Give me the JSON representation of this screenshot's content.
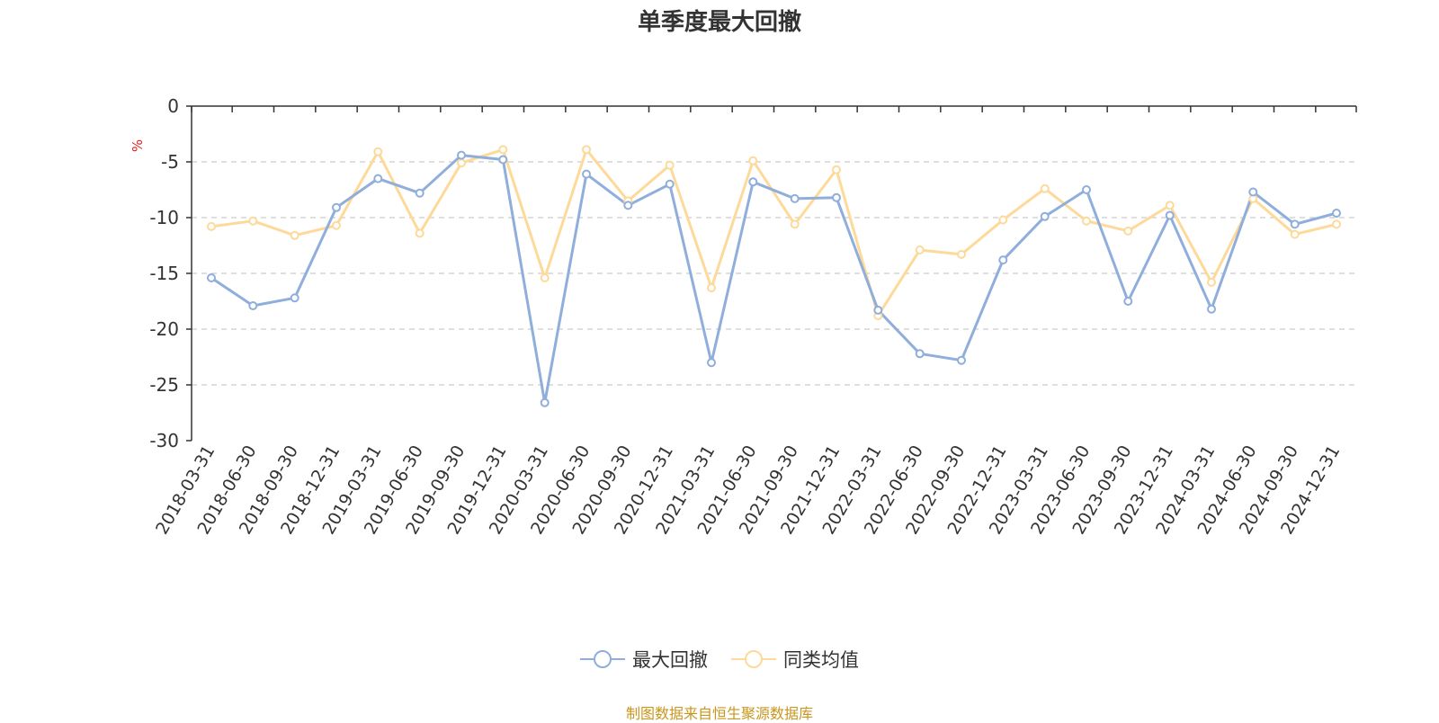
{
  "chart_data": {
    "type": "line",
    "title": "单季度最大回撤",
    "ylabel": "%",
    "ylim": [
      -30,
      0
    ],
    "yticks": [
      0,
      -5,
      -10,
      -15,
      -20,
      -25,
      -30
    ],
    "grid": true,
    "legend_position": "bottom-center",
    "categories": [
      "2018-03-31",
      "2018-06-30",
      "2018-09-30",
      "2018-12-31",
      "2019-03-31",
      "2019-06-30",
      "2019-09-30",
      "2019-12-31",
      "2020-03-31",
      "2020-06-30",
      "2020-09-30",
      "2020-12-31",
      "2021-03-31",
      "2021-06-30",
      "2021-09-30",
      "2021-12-31",
      "2022-03-31",
      "2022-06-30",
      "2022-09-30",
      "2022-12-31",
      "2023-03-31",
      "2023-06-30",
      "2023-09-30",
      "2023-12-31",
      "2024-03-31",
      "2024-06-30",
      "2024-09-30",
      "2024-12-31"
    ],
    "series": [
      {
        "name": "最大回撤",
        "color": "#8faedb",
        "values": [
          -15.4,
          -17.9,
          -17.2,
          -9.1,
          -6.5,
          -7.8,
          -4.4,
          -4.8,
          -26.6,
          -6.1,
          -8.9,
          -7.0,
          -23.0,
          -6.8,
          -8.3,
          -8.2,
          -18.3,
          -22.2,
          -22.8,
          -13.8,
          -9.9,
          -7.5,
          -17.5,
          -9.8,
          -18.2,
          -7.7,
          -10.6,
          -9.6
        ]
      },
      {
        "name": "同类均值",
        "color": "#fdd99a",
        "values": [
          -10.8,
          -10.3,
          -11.6,
          -10.7,
          -4.1,
          -11.4,
          -5.1,
          -3.9,
          -15.4,
          -3.9,
          -8.5,
          -5.3,
          -16.3,
          -4.9,
          -10.6,
          -5.7,
          -18.8,
          -12.9,
          -13.3,
          -10.2,
          -7.4,
          -10.3,
          -11.2,
          -8.9,
          -15.8,
          -8.3,
          -11.5,
          -10.6
        ]
      }
    ]
  },
  "source_note": "制图数据来自恒生聚源数据库"
}
